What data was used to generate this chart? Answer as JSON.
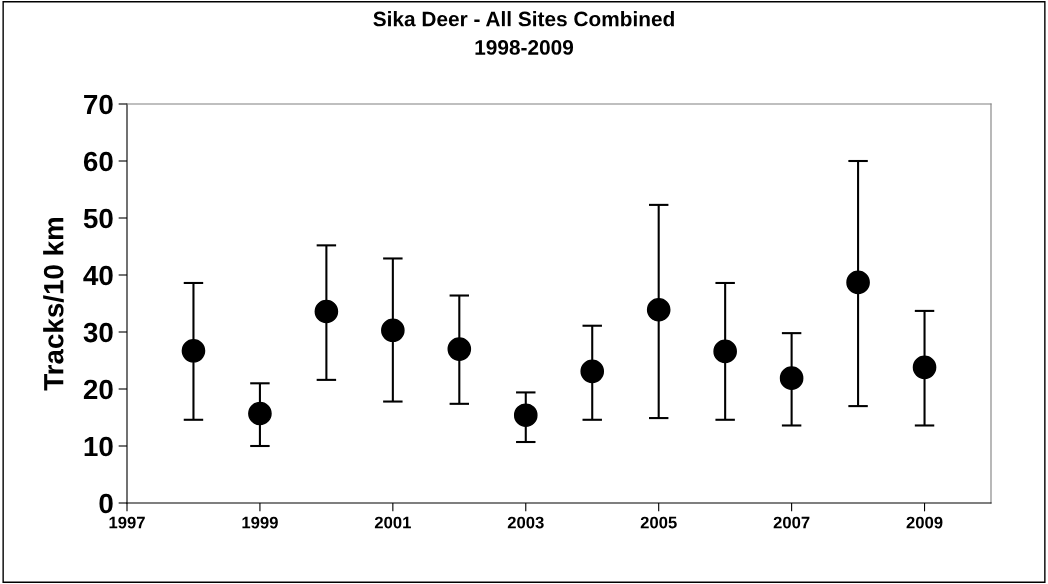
{
  "chart_data": {
    "type": "scatter",
    "title": "Sika Deer - All Sites Combined\n1998-2009",
    "ylabel": "Tracks/10 km",
    "x": [
      1998,
      1999,
      2000,
      2001,
      2002,
      2003,
      2004,
      2005,
      2006,
      2007,
      2008,
      2009
    ],
    "values": [
      26.7,
      15.7,
      33.6,
      30.3,
      27.0,
      15.4,
      23.1,
      33.9,
      26.6,
      21.9,
      38.7,
      23.8
    ],
    "errors": [
      [
        14.6,
        38.6
      ],
      [
        10.0,
        21.0
      ],
      [
        21.6,
        45.2
      ],
      [
        17.8,
        42.9
      ],
      [
        17.4,
        36.4
      ],
      [
        10.7,
        19.4
      ],
      [
        14.6,
        31.1
      ],
      [
        14.9,
        52.3
      ],
      [
        14.6,
        38.6
      ],
      [
        13.6,
        29.8
      ],
      [
        17.0,
        60.0
      ],
      [
        13.6,
        33.7
      ]
    ],
    "color": "#000000",
    "marker": "circle",
    "xlim": [
      1997,
      2010
    ],
    "xticks": [
      1997,
      1999,
      2001,
      2003,
      2005,
      2007,
      2009
    ],
    "ylim": [
      0,
      70
    ],
    "yticks": [
      0,
      10,
      20,
      30,
      40,
      50,
      60,
      70
    ],
    "grid": false,
    "legend": false
  }
}
